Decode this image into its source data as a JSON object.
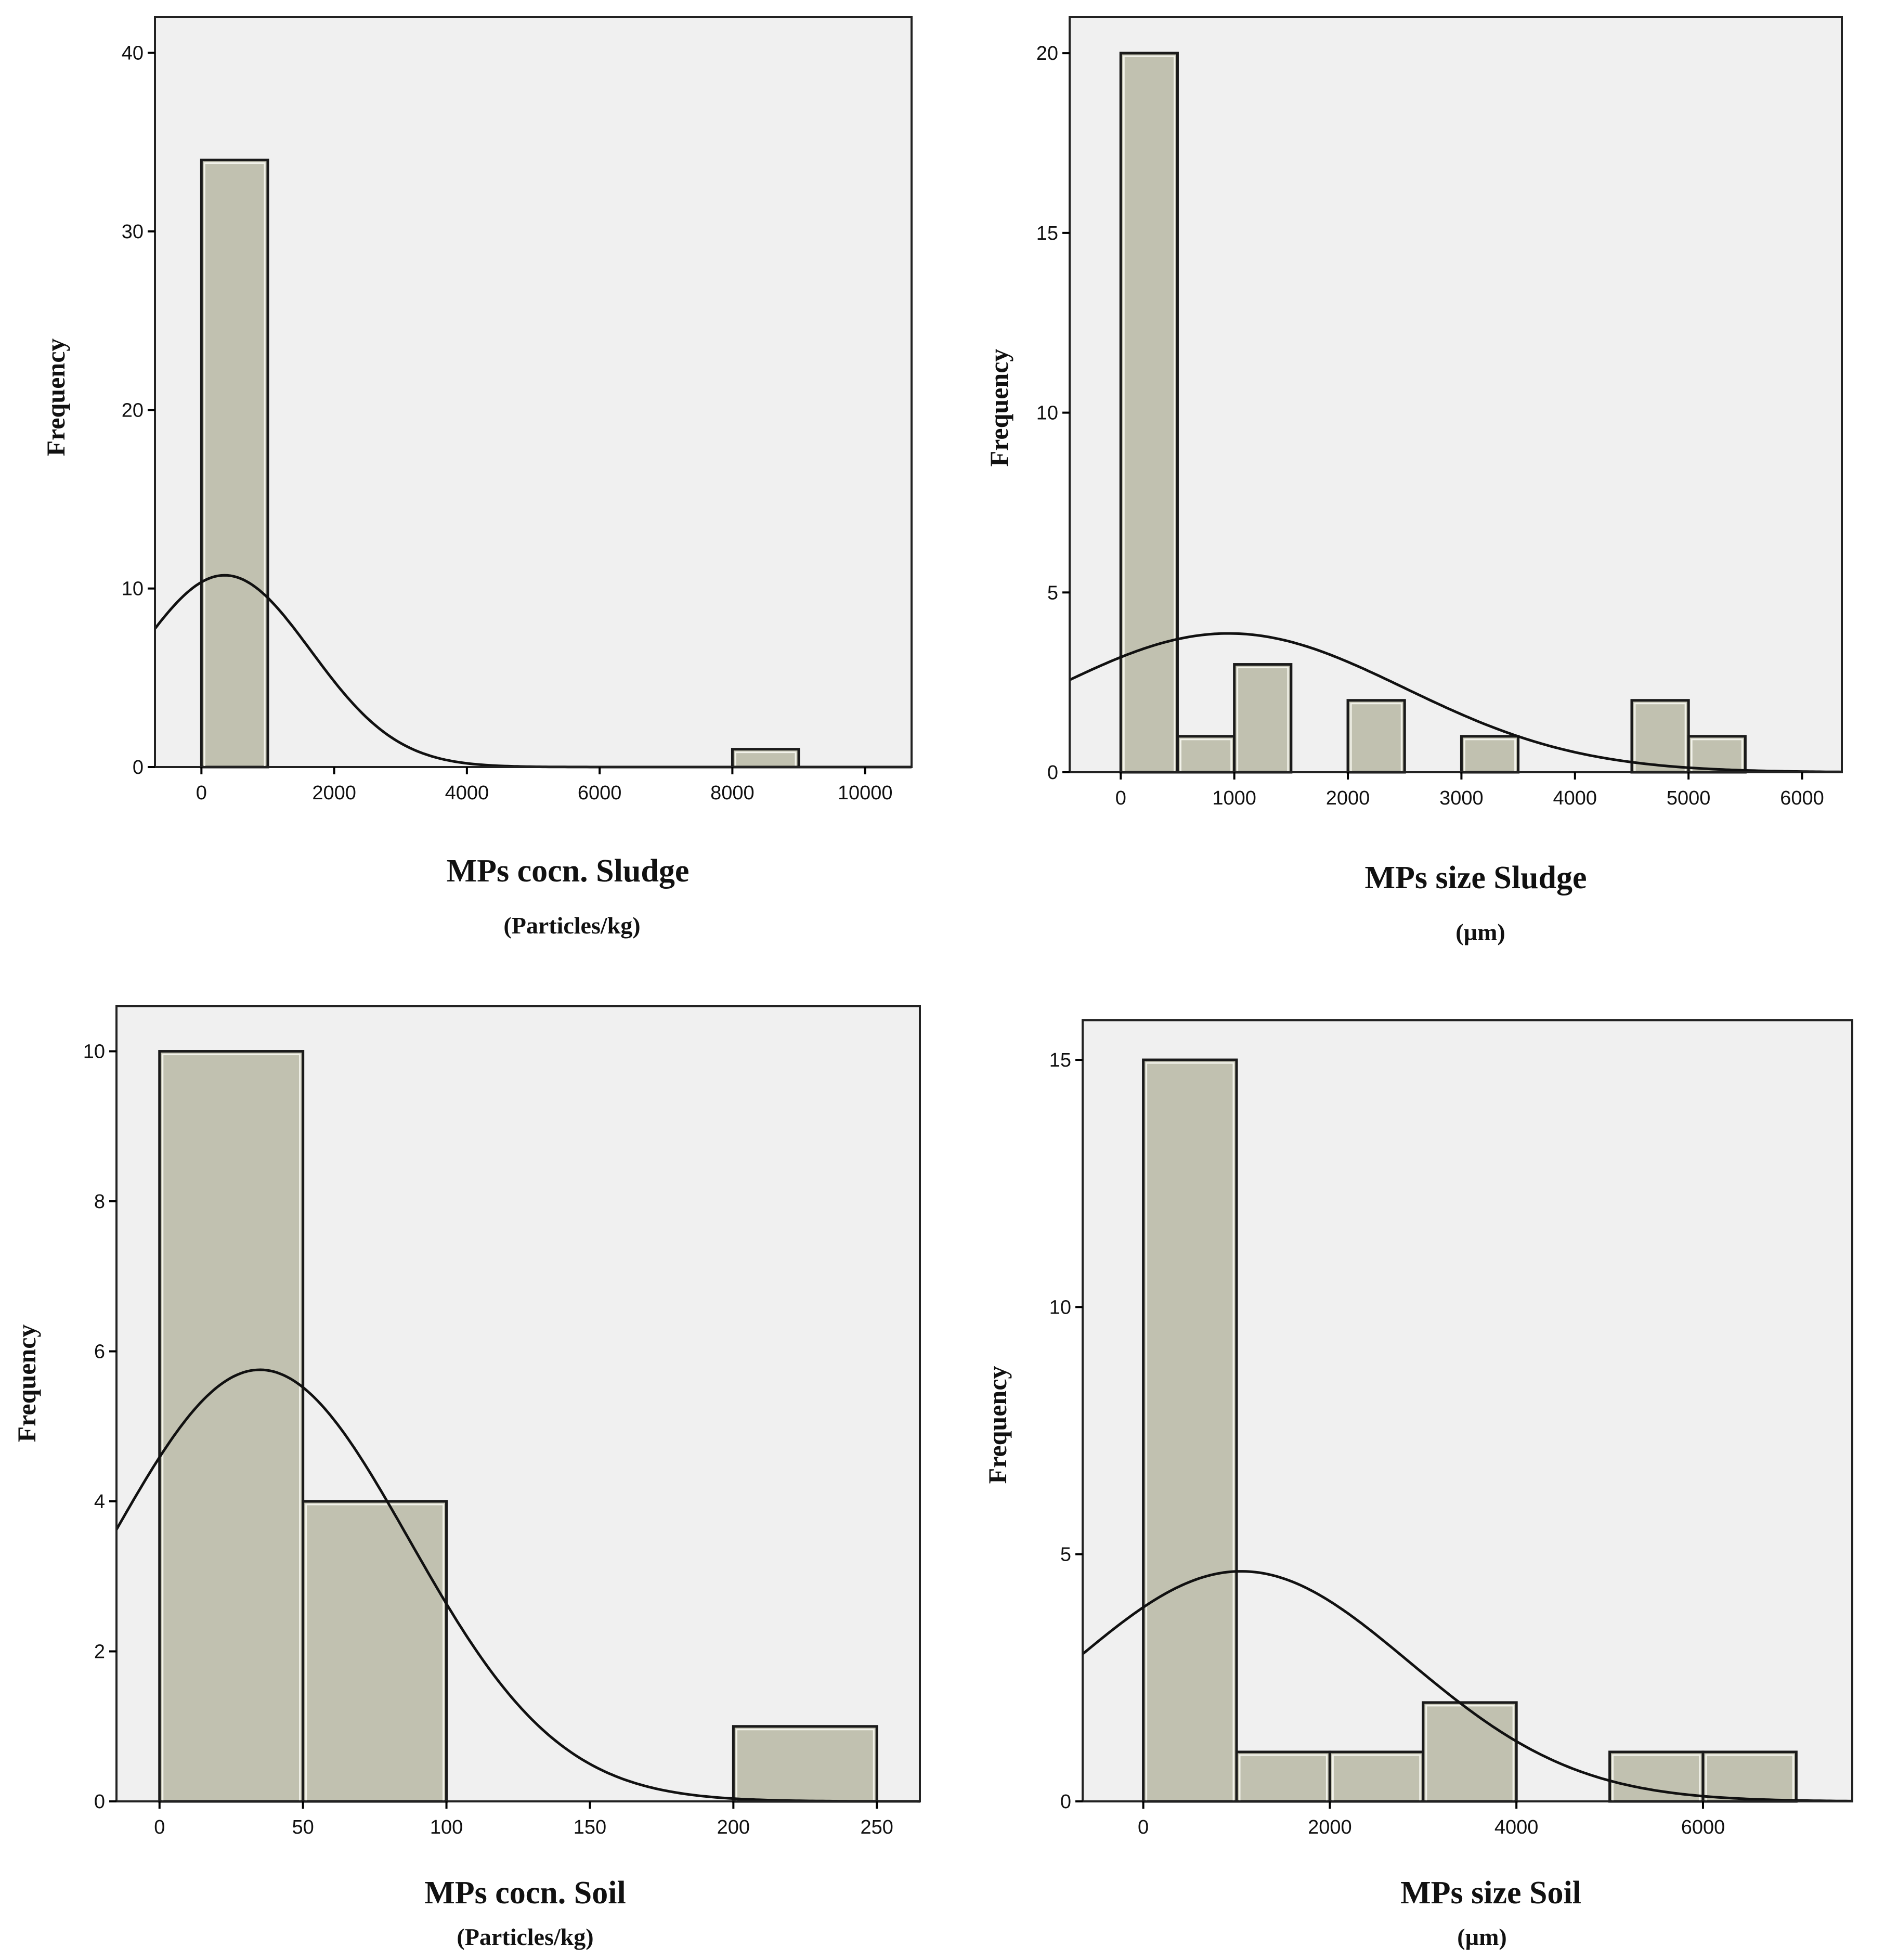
{
  "colors": {
    "bar_fill": "#c1c1b0",
    "bar_edge": "#1a1a1a",
    "bar_inner_edge": "#f2f2ea",
    "plot_bg": "#f0f0f0",
    "curve": "#111111"
  },
  "chart_data": [
    {
      "type": "histogram",
      "id": "sludge-concentration",
      "title": "MPs cocn. Sludge",
      "xlabel_unit": "(Particles/kg)",
      "ylabel": "Frequency",
      "xlim": [
        -700,
        10700
      ],
      "ylim": [
        0,
        42
      ],
      "xticks": [
        0,
        2000,
        4000,
        6000,
        8000,
        10000
      ],
      "yticks": [
        0,
        10,
        20,
        30,
        40
      ],
      "bins": [
        {
          "start": 0,
          "end": 1000,
          "count": 34
        },
        {
          "start": 8000,
          "end": 9000,
          "count": 1
        }
      ],
      "normal_curve": {
        "mean": 350,
        "sd": 1300,
        "n": 35,
        "bin_width": 1000
      }
    },
    {
      "type": "histogram",
      "id": "sludge-size",
      "title": "MPs size Sludge",
      "xlabel_unit": "(µm)",
      "ylabel": "Frequency",
      "xlim": [
        -450,
        6350
      ],
      "ylim": [
        0,
        21
      ],
      "xticks": [
        0,
        1000,
        2000,
        3000,
        4000,
        5000,
        6000
      ],
      "yticks": [
        0,
        5,
        10,
        15,
        20
      ],
      "bins": [
        {
          "start": 0,
          "end": 500,
          "count": 20
        },
        {
          "start": 500,
          "end": 1000,
          "count": 1
        },
        {
          "start": 1000,
          "end": 1500,
          "count": 3
        },
        {
          "start": 2000,
          "end": 2500,
          "count": 2
        },
        {
          "start": 3000,
          "end": 3500,
          "count": 1
        },
        {
          "start": 4500,
          "end": 5000,
          "count": 2
        },
        {
          "start": 5000,
          "end": 5500,
          "count": 1
        }
      ],
      "normal_curve": {
        "mean": 950,
        "sd": 1550,
        "n": 30,
        "bin_width": 500
      }
    },
    {
      "type": "histogram",
      "id": "soil-concentration",
      "title": "MPs cocn. Soil",
      "xlabel_unit": "(Particles/kg)",
      "ylabel": "Frequency",
      "xlim": [
        -15,
        265
      ],
      "ylim": [
        0,
        10.6
      ],
      "xticks": [
        0,
        50,
        100,
        150,
        200,
        250
      ],
      "yticks": [
        0,
        2,
        4,
        6,
        8,
        10
      ],
      "bins": [
        {
          "start": 0,
          "end": 50,
          "count": 10
        },
        {
          "start": 50,
          "end": 100,
          "count": 4
        },
        {
          "start": 200,
          "end": 250,
          "count": 1
        }
      ],
      "normal_curve": {
        "mean": 35,
        "sd": 52,
        "n": 15,
        "bin_width": 50
      }
    },
    {
      "type": "histogram",
      "id": "soil-size",
      "title": "MPs size Soil",
      "xlabel_unit": "(µm)",
      "ylabel": "Frequency",
      "xlim": [
        -650,
        7600
      ],
      "ylim": [
        0,
        15.8
      ],
      "xticks": [
        0,
        2000,
        4000,
        6000
      ],
      "yticks": [
        0,
        5,
        10,
        15
      ],
      "bins": [
        {
          "start": 0,
          "end": 1000,
          "count": 15
        },
        {
          "start": 1000,
          "end": 2000,
          "count": 1
        },
        {
          "start": 2000,
          "end": 3000,
          "count": 1
        },
        {
          "start": 3000,
          "end": 4000,
          "count": 2
        },
        {
          "start": 5000,
          "end": 6000,
          "count": 1
        },
        {
          "start": 6000,
          "end": 7000,
          "count": 1
        }
      ],
      "normal_curve": {
        "mean": 1050,
        "sd": 1800,
        "n": 21,
        "bin_width": 1000
      }
    }
  ]
}
